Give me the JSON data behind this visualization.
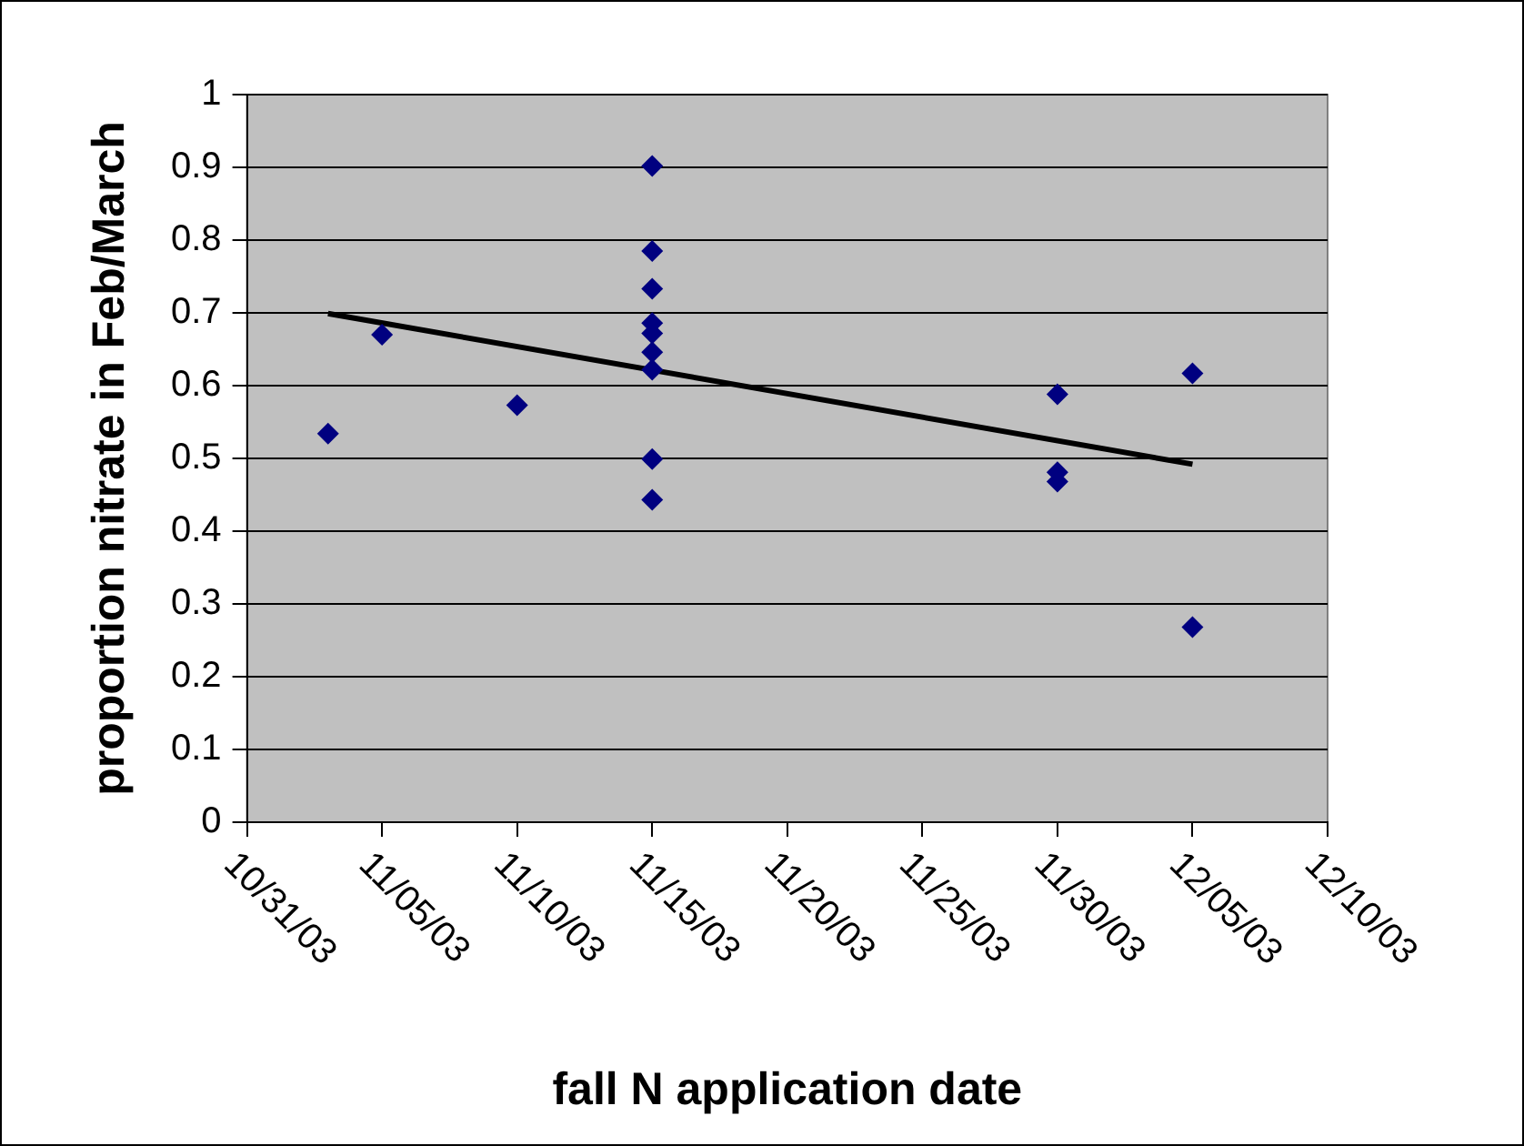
{
  "chart_data": {
    "type": "scatter",
    "xlabel": "fall N application date",
    "ylabel": "proportion nitrate in Feb/March",
    "series": [
      {
        "color": "#000080",
        "x": [
          "--11-03",
          "--11-05",
          "--11-10",
          "--11-15",
          "--11-15",
          "--11-15",
          "--11-15",
          "--11-15",
          "--11-15",
          "--11-15",
          "--11-15",
          "--11-15",
          "--11-30",
          "--11-30",
          "--11-30",
          "--12-05",
          "--12-05"
        ],
        "values": [
          0.534,
          0.67,
          0.573,
          0.902,
          0.785,
          0.733,
          0.686,
          0.672,
          0.646,
          0.622,
          0.499,
          0.443,
          0.588,
          0.481,
          0.468,
          0.617,
          0.268
        ]
      },
      {
        "type": "line",
        "color": "#000000",
        "marker": "none",
        "x": [
          "--11-03",
          "--12-05"
        ],
        "values": [
          0.699,
          0.492
        ]
      }
    ],
    "marker": "diamond",
    "legend": false,
    "grid": "y",
    "xlim": [
      "--10-31",
      "--12-10"
    ],
    "xticks": [
      {
        "value": "--10-31",
        "label": "10/31/03"
      },
      {
        "value": "--11-05",
        "label": "11/05/03"
      },
      {
        "value": "--11-10",
        "label": "11/10/03"
      },
      {
        "value": "--11-15",
        "label": "11/15/03"
      },
      {
        "value": "--11-20",
        "label": "11/20/03"
      },
      {
        "value": "--11-25",
        "label": "11/25/03"
      },
      {
        "value": "--11-30",
        "label": "11/30/03"
      },
      {
        "value": "--12-05",
        "label": "12/05/03"
      },
      {
        "value": "--12-10",
        "label": "12/10/03"
      }
    ],
    "ylim": [
      0,
      1
    ],
    "yticks": [
      0,
      0.1,
      0.2,
      0.3,
      0.4,
      0.5,
      0.6,
      0.7,
      0.8,
      0.9,
      1
    ]
  }
}
